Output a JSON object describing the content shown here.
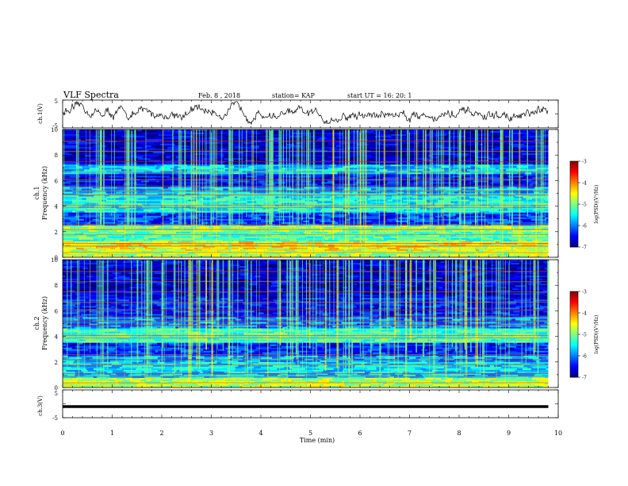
{
  "header": {
    "title": "VLF Spectra",
    "date": "Feb. 8  , 2018",
    "station": "station= KAP",
    "start": "start  UT  =   16: 20: 1"
  },
  "chart_data": [
    {
      "type": "line",
      "panel": "ch1-waveform",
      "ylabel": "ch.1(V)",
      "ylim": [
        -5,
        5
      ],
      "yticks": [
        "5",
        "-5"
      ],
      "xlim": [
        0,
        10
      ]
    },
    {
      "type": "heatmap",
      "panel": "ch1-spectrogram",
      "ylabel_top": "ch.1",
      "ylabel": "Frequency (kHz)",
      "ylim": [
        0,
        10
      ],
      "yticks": [
        "0",
        "2",
        "4",
        "6",
        "8",
        "10"
      ],
      "xlim": [
        0,
        10
      ],
      "colorbar": {
        "label": "log(PSD)(V²/Hz)",
        "range": [
          -7,
          -3
        ],
        "ticks": [
          "-3",
          "-4",
          "-5",
          "-6",
          "-7"
        ]
      }
    },
    {
      "type": "heatmap",
      "panel": "ch2-spectrogram",
      "ylabel_top": "ch.2",
      "ylabel": "Frequency (kHz)",
      "ylim": [
        0,
        10
      ],
      "yticks": [
        "0",
        "2",
        "4",
        "6",
        "8",
        "10"
      ],
      "xlim": [
        0,
        10
      ],
      "colorbar": {
        "label": "log(PSD)(V²/Hz)",
        "range": [
          -7,
          -3
        ],
        "ticks": [
          "-3",
          "-4",
          "-5",
          "-6",
          "-7"
        ]
      }
    },
    {
      "type": "line",
      "panel": "ch3-waveform",
      "ylabel": "ch.3(V)",
      "ylim": [
        -5,
        5
      ],
      "yticks": [
        "5",
        "-5"
      ],
      "xlim": [
        0,
        10
      ],
      "xlabel": "Time (min)",
      "xticks": [
        "0",
        "1",
        "2",
        "3",
        "4",
        "5",
        "6",
        "7",
        "8",
        "9",
        "10"
      ],
      "series": [
        {
          "x": [
            0,
            9.8
          ],
          "y": [
            -1,
            -1
          ]
        }
      ]
    }
  ],
  "colors": {
    "bg": "#ffffff",
    "ink": "#000000",
    "colormap": [
      "#00007f",
      "#0000ff",
      "#007fff",
      "#00ffff",
      "#7fff7f",
      "#ffff00",
      "#ff7f00",
      "#ff0000",
      "#7f0000"
    ]
  }
}
